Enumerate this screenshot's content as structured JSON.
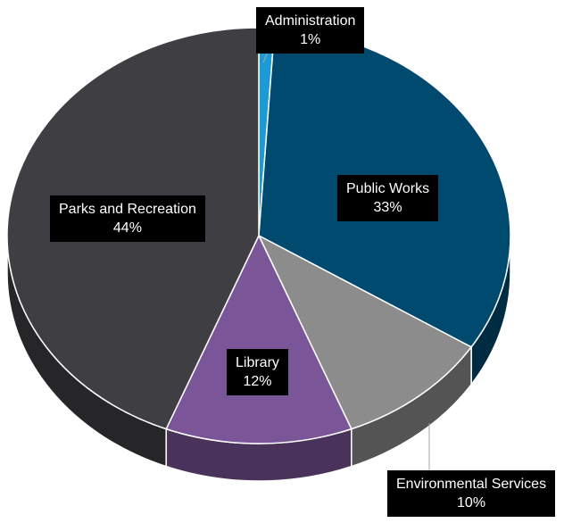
{
  "chart_data": {
    "type": "pie",
    "style": "3d",
    "title": "",
    "legend": "none",
    "slices": [
      {
        "label": "Administration",
        "value": 1,
        "value_label": "1%",
        "color": "#1B9AD6"
      },
      {
        "label": "Public Works",
        "value": 33,
        "value_label": "33%",
        "color": "#004A6F"
      },
      {
        "label": "Environmental Services",
        "value": 10,
        "value_label": "10%",
        "color": "#8C8C8C"
      },
      {
        "label": "Library",
        "value": 12,
        "value_label": "12%",
        "color": "#7A5598"
      },
      {
        "label": "Parks and Recreation",
        "value": 44,
        "value_label": "44%",
        "color": "#3F3E43"
      }
    ]
  }
}
